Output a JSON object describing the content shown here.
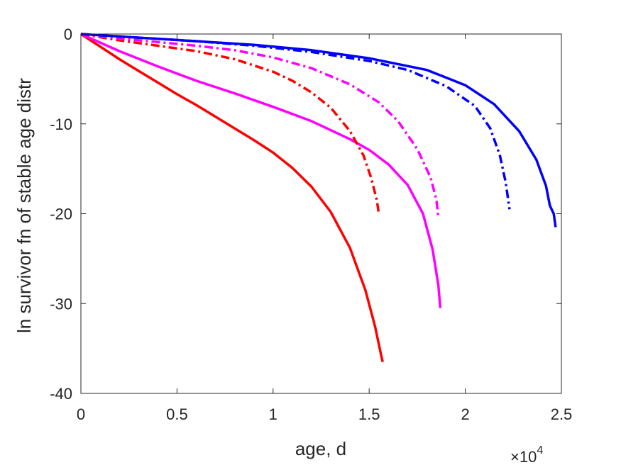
{
  "chart_data": {
    "type": "line",
    "title": "",
    "xlabel": "age, d",
    "ylabel": "ln survivor fn of stable age distr",
    "x_exponent_label": "×10",
    "x_exponent_power": "4",
    "xlim": [
      0,
      25000
    ],
    "ylim": [
      -40,
      0
    ],
    "x_ticks": [
      0,
      5000,
      10000,
      15000,
      20000,
      25000
    ],
    "x_tick_labels": [
      "0",
      "0.5",
      "1",
      "1.5",
      "2",
      "2.5"
    ],
    "y_ticks": [
      0,
      -10,
      -20,
      -30,
      -40
    ],
    "y_tick_labels": [
      "0",
      "-10",
      "-20",
      "-30",
      "-40"
    ],
    "grid": false,
    "legend": false,
    "series": [
      {
        "color": "#ff0000",
        "dash": "solid",
        "points": [
          [
            0,
            0
          ],
          [
            1000,
            -1.4
          ],
          [
            2000,
            -2.8
          ],
          [
            3000,
            -4.1
          ],
          [
            4000,
            -5.4
          ],
          [
            5000,
            -6.7
          ],
          [
            6000,
            -7.9
          ],
          [
            7000,
            -9.2
          ],
          [
            8000,
            -10.5
          ],
          [
            9000,
            -11.8
          ],
          [
            10000,
            -13.2
          ],
          [
            11000,
            -14.9
          ],
          [
            12000,
            -17.0
          ],
          [
            13000,
            -19.8
          ],
          [
            14000,
            -23.8
          ],
          [
            14800,
            -28.5
          ],
          [
            15300,
            -32.5
          ],
          [
            15600,
            -35.5
          ],
          [
            15700,
            -36.5
          ]
        ]
      },
      {
        "color": "#ff00ff",
        "dash": "solid",
        "points": [
          [
            0,
            0
          ],
          [
            2000,
            -1.9
          ],
          [
            4000,
            -3.6
          ],
          [
            6000,
            -5.2
          ],
          [
            8000,
            -6.6
          ],
          [
            10000,
            -8.1
          ],
          [
            12000,
            -9.7
          ],
          [
            14000,
            -11.7
          ],
          [
            15000,
            -12.9
          ],
          [
            16000,
            -14.5
          ],
          [
            17000,
            -16.8
          ],
          [
            17800,
            -20.0
          ],
          [
            18300,
            -24.0
          ],
          [
            18600,
            -28.0
          ],
          [
            18700,
            -30.5
          ]
        ]
      },
      {
        "color": "#ff0000",
        "dash": "dashdot",
        "points": [
          [
            0,
            0
          ],
          [
            2000,
            -0.7
          ],
          [
            4000,
            -1.3
          ],
          [
            6000,
            -1.9
          ],
          [
            8000,
            -2.8
          ],
          [
            10000,
            -4.2
          ],
          [
            11000,
            -5.2
          ],
          [
            12000,
            -6.5
          ],
          [
            13000,
            -8.2
          ],
          [
            14000,
            -10.8
          ],
          [
            14700,
            -13.5
          ],
          [
            15100,
            -16.0
          ],
          [
            15400,
            -18.5
          ],
          [
            15500,
            -20.0
          ]
        ]
      },
      {
        "color": "#ff00ff",
        "dash": "dashdot",
        "points": [
          [
            0,
            0
          ],
          [
            2000,
            -0.5
          ],
          [
            4000,
            -0.9
          ],
          [
            6000,
            -1.3
          ],
          [
            8000,
            -1.8
          ],
          [
            10000,
            -2.6
          ],
          [
            12000,
            -3.8
          ],
          [
            14000,
            -5.6
          ],
          [
            15500,
            -7.6
          ],
          [
            16500,
            -9.7
          ],
          [
            17500,
            -12.8
          ],
          [
            18200,
            -16.0
          ],
          [
            18500,
            -18.5
          ],
          [
            18600,
            -20.5
          ]
        ]
      },
      {
        "color": "#0000ff",
        "dash": "dashdot",
        "points": [
          [
            0,
            0
          ],
          [
            3000,
            -0.4
          ],
          [
            6000,
            -0.8
          ],
          [
            9000,
            -1.3
          ],
          [
            12000,
            -2.0
          ],
          [
            15000,
            -3.0
          ],
          [
            17000,
            -4.0
          ],
          [
            19000,
            -5.8
          ],
          [
            20500,
            -8.0
          ],
          [
            21300,
            -10.5
          ],
          [
            21800,
            -13.5
          ],
          [
            22100,
            -16.5
          ],
          [
            22300,
            -19.5
          ]
        ]
      },
      {
        "color": "#0000ff",
        "dash": "solid",
        "points": [
          [
            0,
            0
          ],
          [
            3000,
            -0.4
          ],
          [
            6000,
            -0.8
          ],
          [
            9000,
            -1.2
          ],
          [
            12000,
            -1.8
          ],
          [
            15000,
            -2.7
          ],
          [
            18000,
            -4.0
          ],
          [
            20000,
            -5.7
          ],
          [
            21500,
            -7.8
          ],
          [
            22800,
            -10.8
          ],
          [
            23700,
            -14.0
          ],
          [
            24200,
            -16.9
          ],
          [
            24400,
            -19.1
          ],
          [
            24600,
            -20.0
          ],
          [
            24700,
            -21.5
          ]
        ]
      }
    ]
  }
}
